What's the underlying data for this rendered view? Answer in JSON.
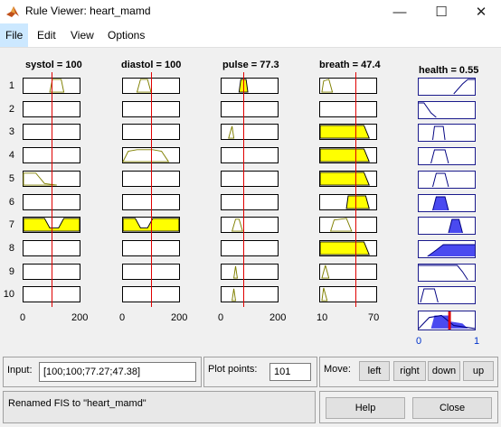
{
  "window": {
    "title": "Rule Viewer: heart_mamd",
    "controls": {
      "minimize": "—",
      "maximize": "☐",
      "close": "✕"
    }
  },
  "menu": [
    "File",
    "Edit",
    "View",
    "Options"
  ],
  "menu_active": "File",
  "inputs": [
    {
      "title": "systol = 100",
      "range_min": "0",
      "range_max": "200",
      "lo": 0,
      "hi": 200,
      "marker": 100
    },
    {
      "title": "diastol = 100",
      "range_min": "0",
      "range_max": "200",
      "lo": 0,
      "hi": 200,
      "marker": 100
    },
    {
      "title": "pulse = 77.3",
      "range_min": "0",
      "range_max": "200",
      "lo": 0,
      "hi": 200,
      "marker": 77.3
    },
    {
      "title": "breath = 47.4",
      "range_min": "10",
      "range_max": "70",
      "lo": 10,
      "hi": 70,
      "marker": 47.4
    }
  ],
  "output": {
    "title": "health = 0.55",
    "range_min": "0",
    "range_max": "1",
    "marker": 0.55
  },
  "rule_numbers": [
    "1",
    "2",
    "3",
    "4",
    "5",
    "6",
    "7",
    "8",
    "9",
    "10"
  ],
  "colors": {
    "fill_yellow": "#ffff00",
    "curve_olive": "#808000",
    "output_blue": "#4a4af0",
    "output_curve": "#000080",
    "marker_red": "#e00000"
  },
  "bottom": {
    "input_label": "Input:",
    "input_value": "[100;100;77.27;47.38]",
    "plot_points_label": "Plot points:",
    "plot_points_value": "101",
    "move_label": "Move:",
    "move_buttons": [
      "left",
      "right",
      "down",
      "up"
    ],
    "status": "Renamed FIS to \"heart_mamd\"",
    "help": "Help",
    "close": "Close"
  }
}
